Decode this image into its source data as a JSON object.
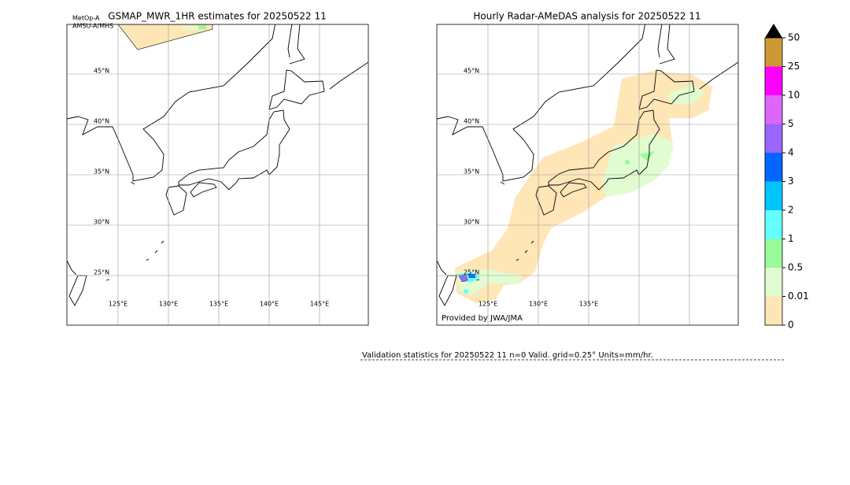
{
  "left_panel": {
    "title": "GSMAP_MWR_1HR estimates for 20250522 11",
    "satellite": "MetOp-A",
    "sensor": "AMSU-A/MHS",
    "lat_labels": [
      "45°N",
      "40°N",
      "35°N",
      "30°N",
      "25°N"
    ],
    "lon_labels": [
      "125°E",
      "130°E",
      "135°E",
      "140°E",
      "145°E"
    ]
  },
  "right_panel": {
    "title": "Hourly Radar-AMeDAS analysis for 20250522 11",
    "lat_labels": [
      "45°N",
      "40°N",
      "35°N",
      "30°N",
      "25°N"
    ],
    "lon_labels": [
      "125°E",
      "130°E",
      "135°E"
    ],
    "credit": "Provided by JWA/JMA"
  },
  "colorbar": {
    "labels": [
      "0",
      "0.01",
      "0.5",
      "1",
      "2",
      "3",
      "4",
      "5",
      "10",
      "25",
      "50"
    ]
  },
  "footer": "Validation statistics for 20250522 11  n=0 Valid. grid=0.25° Units=mm/hr."
}
